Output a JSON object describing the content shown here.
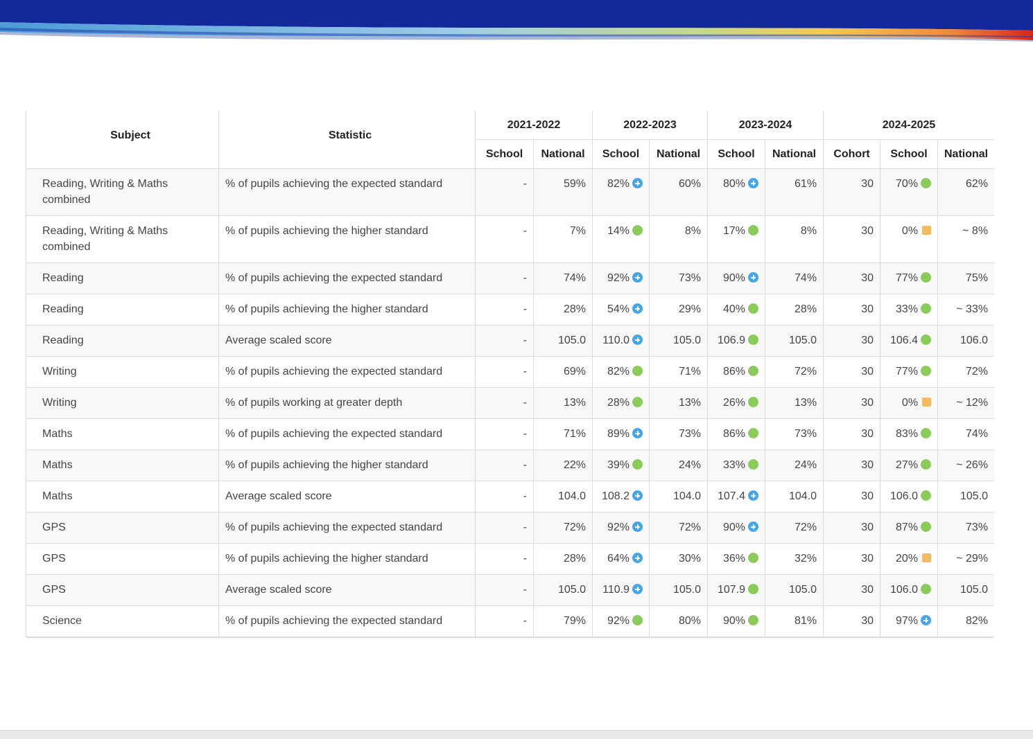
{
  "banner": {
    "colors": [
      "#13289a",
      "#5aa7dc",
      "#f3c94f",
      "#d5261c"
    ]
  },
  "table": {
    "headers": {
      "subject": "Subject",
      "statistic": "Statistic",
      "years": [
        {
          "label": "2021-2022",
          "cols": [
            "School",
            "National"
          ]
        },
        {
          "label": "2022-2023",
          "cols": [
            "School",
            "National"
          ]
        },
        {
          "label": "2023-2024",
          "cols": [
            "School",
            "National"
          ]
        },
        {
          "label": "2024-2025",
          "cols": [
            "Cohort",
            "School",
            "National"
          ]
        }
      ]
    },
    "indicator_legend": {
      "blue": "above (plus-icon)",
      "green": "in line",
      "amber": "below"
    },
    "rows": [
      {
        "subject": "Reading, Writing & Maths combined",
        "statistic": "% of pupils achieving the expected standard",
        "cells": [
          {
            "v": "-"
          },
          {
            "v": "59%"
          },
          {
            "v": "82%",
            "i": "blue"
          },
          {
            "v": "60%"
          },
          {
            "v": "80%",
            "i": "blue"
          },
          {
            "v": "61%"
          },
          {
            "v": "30"
          },
          {
            "v": "70%",
            "i": "green"
          },
          {
            "v": "62%"
          }
        ]
      },
      {
        "subject": "Reading, Writing & Maths combined",
        "statistic": "% of pupils achieving the higher standard",
        "cells": [
          {
            "v": "-"
          },
          {
            "v": "7%"
          },
          {
            "v": "14%",
            "i": "green"
          },
          {
            "v": "8%"
          },
          {
            "v": "17%",
            "i": "green"
          },
          {
            "v": "8%"
          },
          {
            "v": "30"
          },
          {
            "v": "0%",
            "i": "amber"
          },
          {
            "v": "~ 8%"
          }
        ]
      },
      {
        "subject": "Reading",
        "statistic": "% of pupils achieving the expected standard",
        "cells": [
          {
            "v": "-"
          },
          {
            "v": "74%"
          },
          {
            "v": "92%",
            "i": "blue"
          },
          {
            "v": "73%"
          },
          {
            "v": "90%",
            "i": "blue"
          },
          {
            "v": "74%"
          },
          {
            "v": "30"
          },
          {
            "v": "77%",
            "i": "green"
          },
          {
            "v": "75%"
          }
        ]
      },
      {
        "subject": "Reading",
        "statistic": "% of pupils achieving the higher standard",
        "cells": [
          {
            "v": "-"
          },
          {
            "v": "28%"
          },
          {
            "v": "54%",
            "i": "blue"
          },
          {
            "v": "29%"
          },
          {
            "v": "40%",
            "i": "green"
          },
          {
            "v": "28%"
          },
          {
            "v": "30"
          },
          {
            "v": "33%",
            "i": "green"
          },
          {
            "v": "~ 33%"
          }
        ]
      },
      {
        "subject": "Reading",
        "statistic": "Average scaled score",
        "cells": [
          {
            "v": "-"
          },
          {
            "v": "105.0"
          },
          {
            "v": "110.0",
            "i": "blue"
          },
          {
            "v": "105.0"
          },
          {
            "v": "106.9",
            "i": "green"
          },
          {
            "v": "105.0"
          },
          {
            "v": "30"
          },
          {
            "v": "106.4",
            "i": "green"
          },
          {
            "v": "106.0"
          }
        ]
      },
      {
        "subject": "Writing",
        "statistic": "% of pupils achieving the expected standard",
        "cells": [
          {
            "v": "-"
          },
          {
            "v": "69%"
          },
          {
            "v": "82%",
            "i": "green"
          },
          {
            "v": "71%"
          },
          {
            "v": "86%",
            "i": "green"
          },
          {
            "v": "72%"
          },
          {
            "v": "30"
          },
          {
            "v": "77%",
            "i": "green"
          },
          {
            "v": "72%"
          }
        ]
      },
      {
        "subject": "Writing",
        "statistic": "% of pupils working at greater depth",
        "cells": [
          {
            "v": "-"
          },
          {
            "v": "13%"
          },
          {
            "v": "28%",
            "i": "green"
          },
          {
            "v": "13%"
          },
          {
            "v": "26%",
            "i": "green"
          },
          {
            "v": "13%"
          },
          {
            "v": "30"
          },
          {
            "v": "0%",
            "i": "amber"
          },
          {
            "v": "~ 12%"
          }
        ]
      },
      {
        "subject": "Maths",
        "statistic": "% of pupils achieving the expected standard",
        "cells": [
          {
            "v": "-"
          },
          {
            "v": "71%"
          },
          {
            "v": "89%",
            "i": "blue"
          },
          {
            "v": "73%"
          },
          {
            "v": "86%",
            "i": "green"
          },
          {
            "v": "73%"
          },
          {
            "v": "30"
          },
          {
            "v": "83%",
            "i": "green"
          },
          {
            "v": "74%"
          }
        ]
      },
      {
        "subject": "Maths",
        "statistic": "% of pupils achieving the higher standard",
        "cells": [
          {
            "v": "-"
          },
          {
            "v": "22%"
          },
          {
            "v": "39%",
            "i": "green"
          },
          {
            "v": "24%"
          },
          {
            "v": "33%",
            "i": "green"
          },
          {
            "v": "24%"
          },
          {
            "v": "30"
          },
          {
            "v": "27%",
            "i": "green"
          },
          {
            "v": "~ 26%"
          }
        ]
      },
      {
        "subject": "Maths",
        "statistic": "Average scaled score",
        "cells": [
          {
            "v": "-"
          },
          {
            "v": "104.0"
          },
          {
            "v": "108.2",
            "i": "blue"
          },
          {
            "v": "104.0"
          },
          {
            "v": "107.4",
            "i": "blue"
          },
          {
            "v": "104.0"
          },
          {
            "v": "30"
          },
          {
            "v": "106.0",
            "i": "green"
          },
          {
            "v": "105.0"
          }
        ]
      },
      {
        "subject": "GPS",
        "statistic": "% of pupils achieving the expected standard",
        "cells": [
          {
            "v": "-"
          },
          {
            "v": "72%"
          },
          {
            "v": "92%",
            "i": "blue"
          },
          {
            "v": "72%"
          },
          {
            "v": "90%",
            "i": "blue"
          },
          {
            "v": "72%"
          },
          {
            "v": "30"
          },
          {
            "v": "87%",
            "i": "green"
          },
          {
            "v": "73%"
          }
        ]
      },
      {
        "subject": "GPS",
        "statistic": "% of pupils achieving the higher standard",
        "cells": [
          {
            "v": "-"
          },
          {
            "v": "28%"
          },
          {
            "v": "64%",
            "i": "blue"
          },
          {
            "v": "30%"
          },
          {
            "v": "36%",
            "i": "green"
          },
          {
            "v": "32%"
          },
          {
            "v": "30"
          },
          {
            "v": "20%",
            "i": "amber"
          },
          {
            "v": "~ 29%"
          }
        ]
      },
      {
        "subject": "GPS",
        "statistic": "Average scaled score",
        "cells": [
          {
            "v": "-"
          },
          {
            "v": "105.0"
          },
          {
            "v": "110.9",
            "i": "blue"
          },
          {
            "v": "105.0"
          },
          {
            "v": "107.9",
            "i": "green"
          },
          {
            "v": "105.0"
          },
          {
            "v": "30"
          },
          {
            "v": "106.0",
            "i": "green"
          },
          {
            "v": "105.0"
          }
        ]
      },
      {
        "subject": "Science",
        "statistic": "% of pupils achieving the expected standard",
        "cells": [
          {
            "v": "-"
          },
          {
            "v": "79%"
          },
          {
            "v": "92%",
            "i": "green"
          },
          {
            "v": "80%"
          },
          {
            "v": "90%",
            "i": "green"
          },
          {
            "v": "81%"
          },
          {
            "v": "30"
          },
          {
            "v": "97%",
            "i": "blue"
          },
          {
            "v": "82%"
          }
        ]
      }
    ]
  }
}
